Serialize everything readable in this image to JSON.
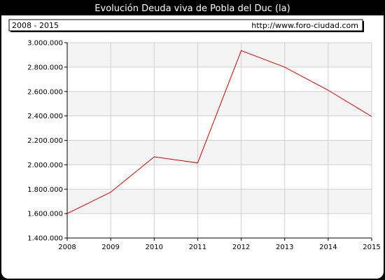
{
  "header": {
    "title": "Evolución Deuda viva de Pobla del Duc (la)",
    "period": "2008 - 2015",
    "url": "http://www.foro-ciudad.com"
  },
  "colors": {
    "background": "#000000",
    "panel": "#ffffff",
    "band": "#f4f4f4",
    "grid": "#d0d0d0",
    "line": "#cc0000"
  },
  "chart_data": {
    "type": "line",
    "title": "Evolución Deuda viva de Pobla del Duc (la)",
    "x": [
      2008,
      2009,
      2010,
      2011,
      2012,
      2013,
      2014,
      2015
    ],
    "x_tick_labels": [
      "2008",
      "2009",
      "2010",
      "2011",
      "2012",
      "2013",
      "2014",
      "2015"
    ],
    "series": [
      {
        "values": [
          1600000,
          1775000,
          2065000,
          2015000,
          2935000,
          2800000,
          2610000,
          2395000
        ]
      }
    ],
    "ylim": [
      1400000,
      3000000
    ],
    "y_ticks": [
      1400000,
      1600000,
      1800000,
      2000000,
      2200000,
      2400000,
      2600000,
      2800000,
      3000000
    ],
    "y_tick_labels": [
      "1.400.000",
      "1.600.000",
      "1.800.000",
      "2.000.000",
      "2.200.000",
      "2.400.000",
      "2.600.000",
      "2.800.000",
      "3.000.000"
    ],
    "grid": true,
    "legend": "none"
  }
}
